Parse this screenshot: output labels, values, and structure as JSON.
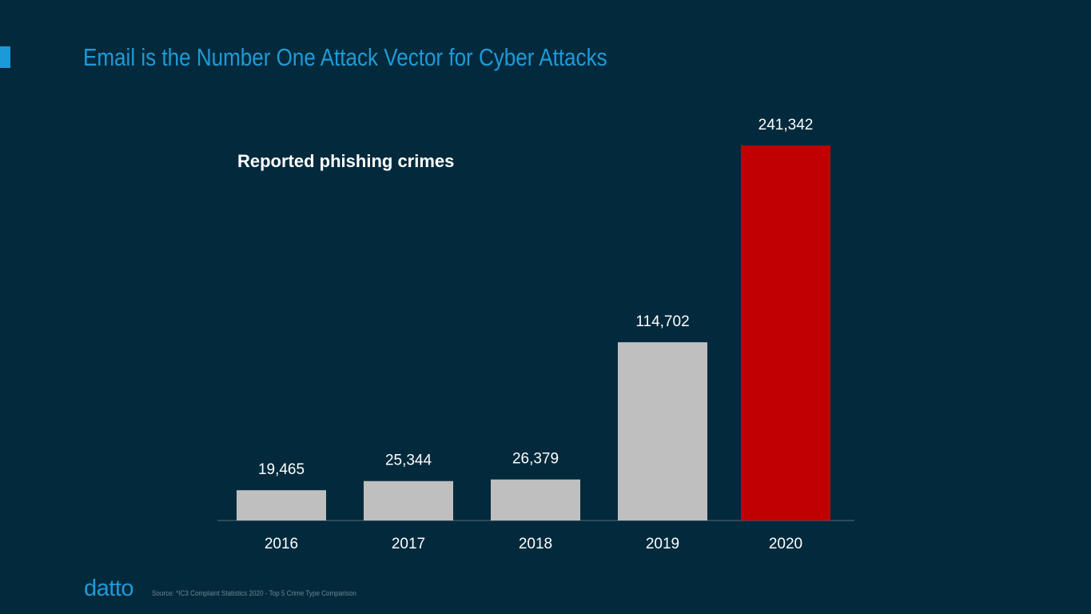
{
  "slide": {
    "title": "Email is the Number One Attack Vector for Cyber Attacks",
    "source": "Source: *IC3 Complaint Statistics 2020 - Top 5 Crime Type Comparison",
    "logo": "datto"
  },
  "colors": {
    "background": "#022a3c",
    "accent": "#1a9ad9",
    "bar_default": "#bfbfbf",
    "bar_highlight": "#c00000",
    "axis": "#3d5564"
  },
  "chart_data": {
    "type": "bar",
    "title": "Reported phishing crimes",
    "categories": [
      "2016",
      "2017",
      "2018",
      "2019",
      "2020"
    ],
    "values": [
      19465,
      25344,
      26379,
      114702,
      241342
    ],
    "value_labels": [
      "19,465",
      "25,344",
      "26,379",
      "114,702",
      "241,342"
    ],
    "highlight_index": 4,
    "xlabel": "",
    "ylabel": "",
    "ylim": [
      0,
      241342
    ],
    "grid": false,
    "legend": "none"
  }
}
